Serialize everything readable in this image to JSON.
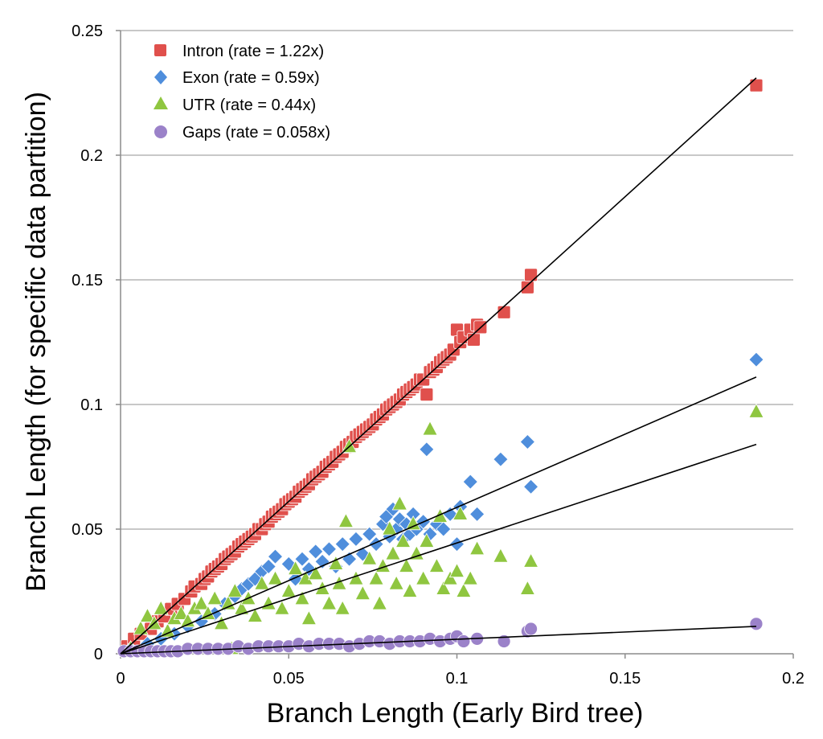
{
  "chart_data": {
    "type": "scatter",
    "title": "",
    "xlabel": "Branch Length (Early Bird tree)",
    "ylabel": "Branch Length (for specific data partition)",
    "xlim": [
      0,
      0.2
    ],
    "ylim": [
      0,
      0.25
    ],
    "x_ticks": [
      {
        "value": 0,
        "label": "0"
      },
      {
        "value": 0.05,
        "label": "0.05"
      },
      {
        "value": 0.1,
        "label": "0.1"
      },
      {
        "value": 0.15,
        "label": "0.15"
      },
      {
        "value": 0.2,
        "label": "0.2"
      }
    ],
    "y_ticks": [
      {
        "value": 0,
        "label": "0"
      },
      {
        "value": 0.05,
        "label": "0.05"
      },
      {
        "value": 0.1,
        "label": "0.1"
      },
      {
        "value": 0.15,
        "label": "0.15"
      },
      {
        "value": 0.2,
        "label": "0.2"
      },
      {
        "value": 0.25,
        "label": "0.25"
      }
    ],
    "grid": "horizontal",
    "legend_position": "top-left",
    "series": [
      {
        "name": "Intron",
        "legend_label": "Intron  (rate = 1.22x)",
        "marker": "square",
        "color": "#e0504c",
        "rate": 1.22,
        "trend_end": [
          0.189,
          0.231
        ],
        "points": [
          [
            0.002,
            0.003
          ],
          [
            0.004,
            0.006
          ],
          [
            0.006,
            0.008
          ],
          [
            0.009,
            0.01
          ],
          [
            0.011,
            0.013
          ],
          [
            0.013,
            0.015
          ],
          [
            0.015,
            0.018
          ],
          [
            0.017,
            0.02
          ],
          [
            0.019,
            0.022
          ],
          [
            0.021,
            0.025
          ],
          [
            0.022,
            0.027
          ],
          [
            0.024,
            0.028
          ],
          [
            0.025,
            0.03
          ],
          [
            0.026,
            0.031
          ],
          [
            0.027,
            0.033
          ],
          [
            0.028,
            0.034
          ],
          [
            0.029,
            0.035
          ],
          [
            0.03,
            0.036
          ],
          [
            0.031,
            0.038
          ],
          [
            0.032,
            0.039
          ],
          [
            0.033,
            0.04
          ],
          [
            0.034,
            0.041
          ],
          [
            0.035,
            0.043
          ],
          [
            0.036,
            0.044
          ],
          [
            0.037,
            0.045
          ],
          [
            0.038,
            0.046
          ],
          [
            0.039,
            0.047
          ],
          [
            0.04,
            0.048
          ],
          [
            0.041,
            0.05
          ],
          [
            0.042,
            0.05
          ],
          [
            0.043,
            0.052
          ],
          [
            0.044,
            0.053
          ],
          [
            0.045,
            0.055
          ],
          [
            0.046,
            0.056
          ],
          [
            0.047,
            0.057
          ],
          [
            0.048,
            0.058
          ],
          [
            0.049,
            0.06
          ],
          [
            0.05,
            0.061
          ],
          [
            0.051,
            0.062
          ],
          [
            0.052,
            0.063
          ],
          [
            0.053,
            0.065
          ],
          [
            0.054,
            0.066
          ],
          [
            0.055,
            0.067
          ],
          [
            0.056,
            0.068
          ],
          [
            0.057,
            0.07
          ],
          [
            0.058,
            0.071
          ],
          [
            0.059,
            0.072
          ],
          [
            0.06,
            0.073
          ],
          [
            0.061,
            0.075
          ],
          [
            0.062,
            0.076
          ],
          [
            0.063,
            0.077
          ],
          [
            0.064,
            0.079
          ],
          [
            0.065,
            0.08
          ],
          [
            0.066,
            0.081
          ],
          [
            0.067,
            0.083
          ],
          [
            0.068,
            0.084
          ],
          [
            0.069,
            0.085
          ],
          [
            0.07,
            0.087
          ],
          [
            0.071,
            0.088
          ],
          [
            0.072,
            0.089
          ],
          [
            0.073,
            0.09
          ],
          [
            0.074,
            0.091
          ],
          [
            0.075,
            0.092
          ],
          [
            0.076,
            0.094
          ],
          [
            0.077,
            0.095
          ],
          [
            0.078,
            0.096
          ],
          [
            0.079,
            0.098
          ],
          [
            0.08,
            0.099
          ],
          [
            0.081,
            0.1
          ],
          [
            0.082,
            0.101
          ],
          [
            0.083,
            0.102
          ],
          [
            0.084,
            0.104
          ],
          [
            0.085,
            0.105
          ],
          [
            0.086,
            0.106
          ],
          [
            0.087,
            0.107
          ],
          [
            0.088,
            0.108
          ],
          [
            0.089,
            0.11
          ],
          [
            0.09,
            0.11
          ],
          [
            0.091,
            0.104
          ],
          [
            0.092,
            0.113
          ],
          [
            0.093,
            0.114
          ],
          [
            0.094,
            0.115
          ],
          [
            0.095,
            0.117
          ],
          [
            0.096,
            0.118
          ],
          [
            0.097,
            0.119
          ],
          [
            0.098,
            0.12
          ],
          [
            0.099,
            0.122
          ],
          [
            0.1,
            0.13
          ],
          [
            0.101,
            0.125
          ],
          [
            0.102,
            0.127
          ],
          [
            0.104,
            0.13
          ],
          [
            0.105,
            0.126
          ],
          [
            0.106,
            0.132
          ],
          [
            0.107,
            0.131
          ],
          [
            0.114,
            0.137
          ],
          [
            0.121,
            0.147
          ],
          [
            0.122,
            0.152
          ],
          [
            0.189,
            0.228
          ]
        ]
      },
      {
        "name": "Exon",
        "legend_label": "Exon  (rate = 0.59x)",
        "marker": "diamond",
        "color": "#4f8edc",
        "rate": 0.59,
        "trend_end": [
          0.189,
          0.111
        ],
        "points": [
          [
            0.003,
            0.002
          ],
          [
            0.008,
            0.004
          ],
          [
            0.012,
            0.006
          ],
          [
            0.016,
            0.008
          ],
          [
            0.02,
            0.011
          ],
          [
            0.024,
            0.013
          ],
          [
            0.028,
            0.016
          ],
          [
            0.031,
            0.02
          ],
          [
            0.034,
            0.023
          ],
          [
            0.036,
            0.026
          ],
          [
            0.038,
            0.028
          ],
          [
            0.04,
            0.03
          ],
          [
            0.042,
            0.033
          ],
          [
            0.044,
            0.035
          ],
          [
            0.046,
            0.039
          ],
          [
            0.05,
            0.036
          ],
          [
            0.052,
            0.03
          ],
          [
            0.054,
            0.038
          ],
          [
            0.056,
            0.034
          ],
          [
            0.058,
            0.041
          ],
          [
            0.06,
            0.037
          ],
          [
            0.062,
            0.042
          ],
          [
            0.064,
            0.035
          ],
          [
            0.066,
            0.044
          ],
          [
            0.068,
            0.038
          ],
          [
            0.07,
            0.046
          ],
          [
            0.072,
            0.04
          ],
          [
            0.074,
            0.048
          ],
          [
            0.076,
            0.044
          ],
          [
            0.078,
            0.052
          ],
          [
            0.079,
            0.055
          ],
          [
            0.08,
            0.047
          ],
          [
            0.081,
            0.058
          ],
          [
            0.082,
            0.05
          ],
          [
            0.083,
            0.054
          ],
          [
            0.084,
            0.046
          ],
          [
            0.085,
            0.052
          ],
          [
            0.086,
            0.048
          ],
          [
            0.087,
            0.056
          ],
          [
            0.088,
            0.05
          ],
          [
            0.09,
            0.053
          ],
          [
            0.091,
            0.082
          ],
          [
            0.092,
            0.048
          ],
          [
            0.094,
            0.052
          ],
          [
            0.096,
            0.05
          ],
          [
            0.098,
            0.056
          ],
          [
            0.1,
            0.044
          ],
          [
            0.101,
            0.059
          ],
          [
            0.104,
            0.069
          ],
          [
            0.106,
            0.056
          ],
          [
            0.113,
            0.078
          ],
          [
            0.121,
            0.085
          ],
          [
            0.122,
            0.067
          ],
          [
            0.189,
            0.118
          ]
        ]
      },
      {
        "name": "UTR",
        "legend_label": "UTR   (rate = 0.44x)",
        "marker": "triangle",
        "color": "#8fc640",
        "rate": 0.44,
        "trend_end": [
          0.189,
          0.084
        ],
        "points": [
          [
            0.003,
            0.002
          ],
          [
            0.006,
            0.01
          ],
          [
            0.008,
            0.015
          ],
          [
            0.01,
            0.012
          ],
          [
            0.012,
            0.018
          ],
          [
            0.014,
            0.009
          ],
          [
            0.016,
            0.014
          ],
          [
            0.018,
            0.016
          ],
          [
            0.02,
            0.013
          ],
          [
            0.022,
            0.018
          ],
          [
            0.024,
            0.02
          ],
          [
            0.026,
            0.016
          ],
          [
            0.028,
            0.022
          ],
          [
            0.03,
            0.012
          ],
          [
            0.032,
            0.02
          ],
          [
            0.033,
            0.002
          ],
          [
            0.034,
            0.025
          ],
          [
            0.036,
            0.018
          ],
          [
            0.038,
            0.022
          ],
          [
            0.04,
            0.015
          ],
          [
            0.042,
            0.028
          ],
          [
            0.044,
            0.02
          ],
          [
            0.046,
            0.03
          ],
          [
            0.048,
            0.018
          ],
          [
            0.05,
            0.025
          ],
          [
            0.052,
            0.034
          ],
          [
            0.054,
            0.022
          ],
          [
            0.055,
            0.03
          ],
          [
            0.056,
            0.014
          ],
          [
            0.058,
            0.032
          ],
          [
            0.06,
            0.026
          ],
          [
            0.062,
            0.02
          ],
          [
            0.064,
            0.036
          ],
          [
            0.065,
            0.028
          ],
          [
            0.066,
            0.018
          ],
          [
            0.067,
            0.053
          ],
          [
            0.068,
            0.083
          ],
          [
            0.07,
            0.03
          ],
          [
            0.072,
            0.024
          ],
          [
            0.074,
            0.038
          ],
          [
            0.076,
            0.03
          ],
          [
            0.077,
            0.02
          ],
          [
            0.078,
            0.035
          ],
          [
            0.08,
            0.05
          ],
          [
            0.081,
            0.04
          ],
          [
            0.082,
            0.028
          ],
          [
            0.083,
            0.06
          ],
          [
            0.084,
            0.045
          ],
          [
            0.085,
            0.035
          ],
          [
            0.086,
            0.025
          ],
          [
            0.087,
            0.052
          ],
          [
            0.088,
            0.04
          ],
          [
            0.09,
            0.03
          ],
          [
            0.091,
            0.045
          ],
          [
            0.092,
            0.09
          ],
          [
            0.094,
            0.035
          ],
          [
            0.095,
            0.055
          ],
          [
            0.096,
            0.026
          ],
          [
            0.098,
            0.03
          ],
          [
            0.1,
            0.033
          ],
          [
            0.101,
            0.056
          ],
          [
            0.102,
            0.025
          ],
          [
            0.104,
            0.03
          ],
          [
            0.106,
            0.042
          ],
          [
            0.113,
            0.039
          ],
          [
            0.121,
            0.026
          ],
          [
            0.122,
            0.037
          ],
          [
            0.189,
            0.097
          ]
        ]
      },
      {
        "name": "Gaps",
        "legend_label": "Gaps  (rate = 0.058x)",
        "marker": "circle",
        "color": "#9b82c9",
        "rate": 0.058,
        "trend_end": [
          0.189,
          0.011
        ],
        "points": [
          [
            0.001,
            0.001
          ],
          [
            0.003,
            0.001
          ],
          [
            0.005,
            0.001
          ],
          [
            0.007,
            0.001
          ],
          [
            0.009,
            0.001
          ],
          [
            0.011,
            0.001
          ],
          [
            0.013,
            0.001
          ],
          [
            0.015,
            0.001
          ],
          [
            0.017,
            0.001
          ],
          [
            0.02,
            0.002
          ],
          [
            0.023,
            0.002
          ],
          [
            0.026,
            0.002
          ],
          [
            0.029,
            0.002
          ],
          [
            0.032,
            0.002
          ],
          [
            0.035,
            0.003
          ],
          [
            0.038,
            0.002
          ],
          [
            0.041,
            0.003
          ],
          [
            0.044,
            0.003
          ],
          [
            0.047,
            0.003
          ],
          [
            0.05,
            0.003
          ],
          [
            0.053,
            0.004
          ],
          [
            0.056,
            0.003
          ],
          [
            0.059,
            0.004
          ],
          [
            0.062,
            0.004
          ],
          [
            0.065,
            0.004
          ],
          [
            0.068,
            0.003
          ],
          [
            0.071,
            0.004
          ],
          [
            0.074,
            0.005
          ],
          [
            0.077,
            0.005
          ],
          [
            0.08,
            0.004
          ],
          [
            0.083,
            0.005
          ],
          [
            0.086,
            0.005
          ],
          [
            0.089,
            0.005
          ],
          [
            0.092,
            0.006
          ],
          [
            0.095,
            0.005
          ],
          [
            0.098,
            0.006
          ],
          [
            0.1,
            0.007
          ],
          [
            0.102,
            0.005
          ],
          [
            0.106,
            0.006
          ],
          [
            0.114,
            0.005
          ],
          [
            0.121,
            0.009
          ],
          [
            0.122,
            0.01
          ],
          [
            0.189,
            0.012
          ]
        ]
      }
    ]
  }
}
